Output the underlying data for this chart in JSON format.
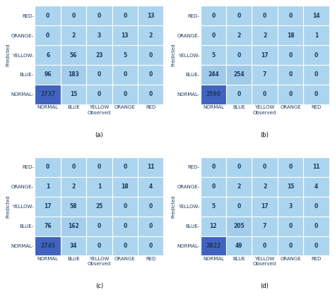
{
  "matrices": [
    {
      "label": "(a)",
      "data": [
        [
          0,
          0,
          0,
          0,
          13
        ],
        [
          0,
          2,
          3,
          13,
          2
        ],
        [
          6,
          56,
          23,
          5,
          0
        ],
        [
          96,
          183,
          0,
          0,
          0
        ],
        [
          2737,
          15,
          0,
          0,
          0
        ]
      ]
    },
    {
      "label": "(b)",
      "data": [
        [
          0,
          0,
          0,
          0,
          14
        ],
        [
          0,
          2,
          2,
          18,
          1
        ],
        [
          5,
          0,
          17,
          0,
          0
        ],
        [
          244,
          254,
          7,
          0,
          0
        ],
        [
          2590,
          0,
          0,
          0,
          0
        ]
      ]
    },
    {
      "label": "(c)",
      "data": [
        [
          0,
          0,
          0,
          0,
          11
        ],
        [
          1,
          2,
          1,
          18,
          4
        ],
        [
          17,
          58,
          25,
          0,
          0
        ],
        [
          76,
          162,
          0,
          0,
          0
        ],
        [
          2745,
          34,
          0,
          0,
          0
        ]
      ]
    },
    {
      "label": "(d)",
      "data": [
        [
          0,
          0,
          0,
          0,
          11
        ],
        [
          0,
          2,
          2,
          15,
          4
        ],
        [
          5,
          0,
          17,
          3,
          0
        ],
        [
          12,
          205,
          7,
          0,
          0
        ],
        [
          2822,
          49,
          0,
          0,
          0
        ]
      ]
    }
  ],
  "x_labels": [
    "NORMAL",
    "BLUE",
    "YELLOW",
    "ORANGE",
    "RED"
  ],
  "y_labels": [
    "RED-",
    "ORANGE-",
    "YELLOW-",
    "BLUE-",
    "NORMAL-"
  ],
  "xlabel": "Observed",
  "ylabel": "Predicted",
  "text_color": "#1e3a5f",
  "fontsize_labels": 5,
  "fontsize_values": 5.5,
  "fontsize_sublabel": 6,
  "r_light": 0.671,
  "g_light": 0.835,
  "b_light": 0.937,
  "r_dark": 0.255,
  "g_dark": 0.388,
  "b_dark": 0.749
}
